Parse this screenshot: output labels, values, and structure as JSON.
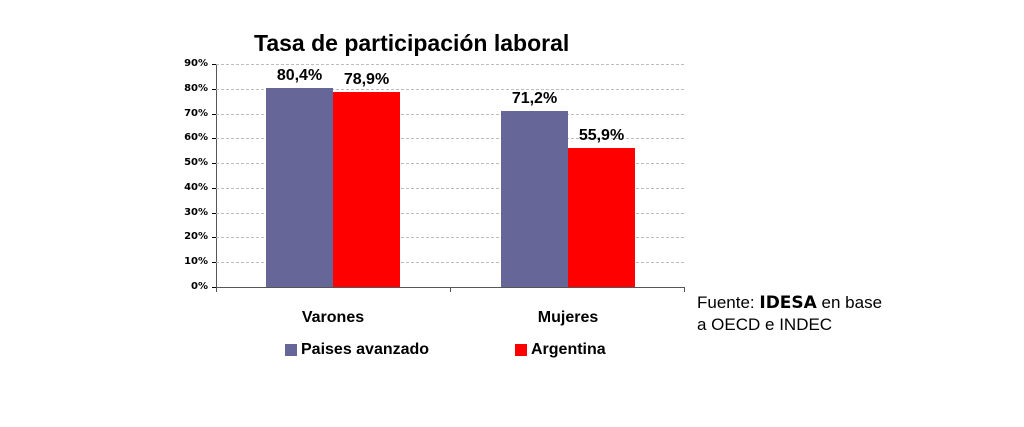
{
  "chart_data": {
    "type": "bar",
    "title": "Tasa de participación laboral",
    "categories": [
      "Varones",
      "Mujeres"
    ],
    "series": [
      {
        "name": "Paises avanzado",
        "color": "#666699",
        "values": [
          80.4,
          71.2
        ],
        "labels": [
          "80,4%",
          "71,2%"
        ]
      },
      {
        "name": "Argentina",
        "color": "#FF0000",
        "values": [
          78.9,
          55.9
        ],
        "labels": [
          "78,9%",
          "55,9%"
        ]
      }
    ],
    "xlabel": "",
    "ylabel": "",
    "ylim": [
      0,
      90
    ],
    "yticks": [
      "0%",
      "10%",
      "20%",
      "30%",
      "40%",
      "50%",
      "60%",
      "70%",
      "80%",
      "90%"
    ],
    "grid": true,
    "legend_position": "bottom"
  },
  "source": {
    "prefix": "Fuente: ",
    "org": "IDESA",
    "suffix": " en base a OECD e INDEC"
  }
}
